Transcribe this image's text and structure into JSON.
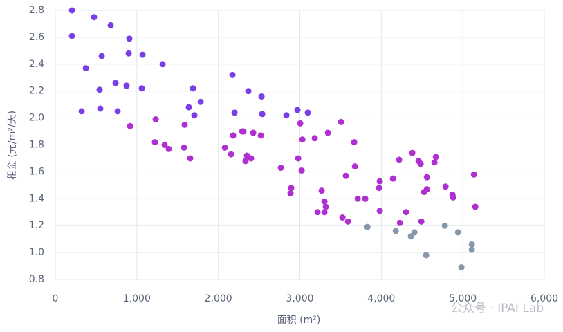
{
  "chart_data": {
    "type": "scatter",
    "x_label": "面积 (m²)",
    "y_label": "租金 (元/m²/天)",
    "watermark": "公众号 · IPAI Lab",
    "xlim": [
      0,
      6000
    ],
    "xticks": [
      0,
      {
        "value": 1000,
        "label": "1,000"
      },
      {
        "value": 2000,
        "label": "2,000"
      },
      {
        "value": 3000,
        "label": "3,000"
      },
      {
        "value": 4000,
        "label": "4,000"
      },
      {
        "value": 5000,
        "label": "5,000"
      },
      {
        "value": 6000,
        "label": "6,000"
      }
    ],
    "ylim": [
      0.8,
      2.8
    ],
    "yticks": [
      0.8,
      {
        "value": 1.0,
        "label": "1.0"
      },
      1.2,
      1.4,
      1.6,
      1.8,
      {
        "value": 2.0,
        "label": "2.0"
      },
      2.2,
      2.4,
      2.6,
      2.8
    ],
    "grid": true,
    "series": [
      {
        "color": "#7a3ee6",
        "x": [
          204,
          204,
          475,
          679,
          908,
          374,
          569,
          900,
          1070,
          1316,
          739,
          543,
          874,
          1061,
          323,
          552,
          764,
          1689,
          1638,
          1783,
          1706,
          2173,
          2368,
          2530,
          2199,
          2538,
          2835,
          2971,
          3098
        ],
        "values": [
          2.8,
          2.61,
          2.75,
          2.69,
          2.59,
          2.37,
          2.46,
          2.48,
          2.47,
          2.4,
          2.26,
          2.21,
          2.24,
          2.22,
          2.05,
          2.07,
          2.05,
          2.22,
          2.08,
          2.12,
          2.02,
          2.32,
          2.2,
          2.16,
          2.04,
          2.03,
          2.02,
          2.06,
          2.04
        ]
      },
      {
        "color": "#b02fd1",
        "x": [
          917,
          1231,
          1222,
          1341,
          1392,
          1587,
          1579,
          1655,
          2080,
          2156,
          2182,
          2292,
          2309,
          2351,
          2334,
          2402,
          2428,
          2521,
          2767,
          2886,
          2894,
          3005,
          3031,
          2980,
          3022,
          3183,
          3345,
          3506,
          3667,
          3676,
          3565,
          3268,
          3302,
          3319,
          3302,
          3217,
          3523,
          3591,
          3710,
          3803,
          3981,
          3973,
          3981,
          4143,
          4219,
          4380,
          4457,
          4482,
          4669,
          4652,
          4559,
          4559,
          4525,
          4788,
          4873,
          4881,
          5136,
          5153,
          4304,
          4228,
          4491
        ],
        "values": [
          1.94,
          1.99,
          1.82,
          1.8,
          1.77,
          1.95,
          1.78,
          1.7,
          1.78,
          1.73,
          1.87,
          1.9,
          1.9,
          1.72,
          1.68,
          1.7,
          1.89,
          1.87,
          1.63,
          1.44,
          1.48,
          1.96,
          1.84,
          1.7,
          1.61,
          1.85,
          1.89,
          1.97,
          1.82,
          1.64,
          1.57,
          1.46,
          1.38,
          1.34,
          1.3,
          1.3,
          1.26,
          1.23,
          1.4,
          1.4,
          1.53,
          1.48,
          1.31,
          1.55,
          1.69,
          1.74,
          1.68,
          1.66,
          1.71,
          1.67,
          1.56,
          1.47,
          1.45,
          1.49,
          1.43,
          1.41,
          1.58,
          1.34,
          1.3,
          1.22,
          1.23
        ]
      },
      {
        "color": "#8696ab",
        "x": [
          3829,
          4177,
          4363,
          4406,
          4550,
          4779,
          4941,
          5110,
          5110,
          4983
        ],
        "values": [
          1.19,
          1.16,
          1.12,
          1.15,
          0.98,
          1.2,
          1.15,
          1.06,
          1.02,
          0.89
        ]
      }
    ]
  }
}
